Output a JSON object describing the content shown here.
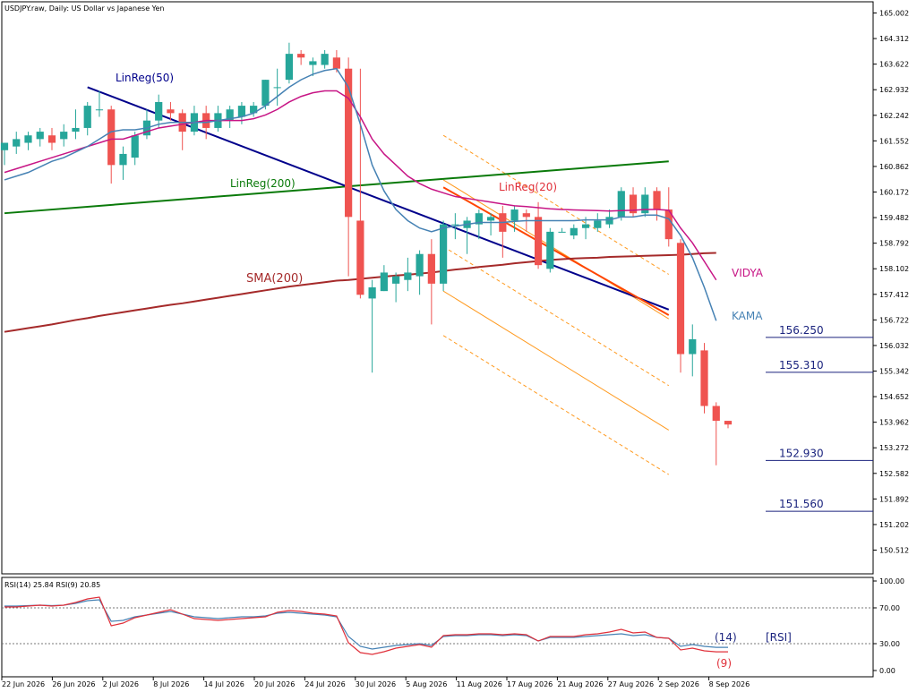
{
  "header": {
    "title": "USDJPY.raw, Daily:  US Dollar vs Japanese Yen"
  },
  "colors": {
    "bull": "#26a69a",
    "bear": "#ef5350",
    "sma200": "#a52a2a",
    "linreg200": "#0a7a0a",
    "linreg50": "#00008b",
    "linreg20": "#ff4500",
    "channel": "#ff9a1f",
    "vidya": "#c71585",
    "kama": "#4682b4",
    "levels": "#1a237e",
    "rsi14": "#4682b4",
    "rsi9": "#e0303a"
  },
  "chart_data": [
    {
      "type": "candlestick",
      "title": "USDJPY.raw, Daily:  US Dollar vs Japanese Yen",
      "ylim": [
        150.0,
        165.3
      ],
      "y_ticks": [
        "165.002",
        "164.312",
        "163.622",
        "162.932",
        "162.242",
        "161.552",
        "160.862",
        "160.172",
        "159.482",
        "158.792",
        "158.102",
        "157.412",
        "156.722",
        "156.032",
        "155.342",
        "154.652",
        "153.962",
        "153.272",
        "152.582",
        "151.892",
        "151.202",
        "150.512"
      ],
      "x_tick_labels": [
        "22 Jun 2026",
        "26 Jun 2026",
        "2 Jul 2026",
        "8 Jul 2026",
        "14 Jul 2026",
        "20 Jul 2026",
        "24 Jul 2026",
        "30 Jul 2026",
        "5 Aug 2026",
        "11 Aug 2026",
        "17 Aug 2026",
        "21 Aug 2026",
        "27 Aug 2026",
        "2 Sep 2026",
        "8 Sep 2026"
      ],
      "candles": [
        [
          161.3,
          161.5,
          160.9,
          161.5
        ],
        [
          161.4,
          161.8,
          161.2,
          161.6
        ],
        [
          161.5,
          161.8,
          161.3,
          161.7
        ],
        [
          161.6,
          161.9,
          161.4,
          161.8
        ],
        [
          161.7,
          161.9,
          161.3,
          161.5
        ],
        [
          161.6,
          162.0,
          161.4,
          161.8
        ],
        [
          161.8,
          162.4,
          161.6,
          161.9
        ],
        [
          161.9,
          162.6,
          161.7,
          162.5
        ],
        [
          162.4,
          162.9,
          162.2,
          162.4
        ],
        [
          162.4,
          162.5,
          160.4,
          160.9
        ],
        [
          160.9,
          161.4,
          160.5,
          161.2
        ],
        [
          161.1,
          161.8,
          160.9,
          161.7
        ],
        [
          161.7,
          162.4,
          161.6,
          162.1
        ],
        [
          162.1,
          162.8,
          161.9,
          162.6
        ],
        [
          162.4,
          162.6,
          162.1,
          162.3
        ],
        [
          162.3,
          162.4,
          161.3,
          161.8
        ],
        [
          161.8,
          162.5,
          161.7,
          162.3
        ],
        [
          162.3,
          162.5,
          161.6,
          161.9
        ],
        [
          161.9,
          162.5,
          161.8,
          162.3
        ],
        [
          162.1,
          162.5,
          161.9,
          162.4
        ],
        [
          162.2,
          162.6,
          162.0,
          162.5
        ],
        [
          162.3,
          162.6,
          162.2,
          162.5
        ],
        [
          162.5,
          163.2,
          162.4,
          163.2
        ],
        [
          163.0,
          163.5,
          162.5,
          163.0
        ],
        [
          163.2,
          164.2,
          163.1,
          163.9
        ],
        [
          163.9,
          164.0,
          163.6,
          163.8
        ],
        [
          163.6,
          163.8,
          163.3,
          163.7
        ],
        [
          163.6,
          164.0,
          163.5,
          163.9
        ],
        [
          163.8,
          164.0,
          163.4,
          163.5
        ],
        [
          163.5,
          163.8,
          157.9,
          159.5
        ],
        [
          159.4,
          163.5,
          157.3,
          157.4
        ],
        [
          157.3,
          157.8,
          155.3,
          157.6
        ],
        [
          157.5,
          158.2,
          157.5,
          158.0
        ],
        [
          157.7,
          158.0,
          157.2,
          157.9
        ],
        [
          157.8,
          158.4,
          157.5,
          158.0
        ],
        [
          157.9,
          158.6,
          157.4,
          158.5
        ],
        [
          158.5,
          158.9,
          156.6,
          157.7
        ],
        [
          157.7,
          159.4,
          157.5,
          159.3
        ],
        [
          159.3,
          159.6,
          158.9,
          159.3
        ],
        [
          159.2,
          159.5,
          158.5,
          159.4
        ],
        [
          159.3,
          159.7,
          158.9,
          159.6
        ],
        [
          159.4,
          159.6,
          159.0,
          159.5
        ],
        [
          159.6,
          159.8,
          158.4,
          159.1
        ],
        [
          159.4,
          159.8,
          159.1,
          159.7
        ],
        [
          159.6,
          159.7,
          159.1,
          159.5
        ],
        [
          159.5,
          159.9,
          158.1,
          158.2
        ],
        [
          158.1,
          159.2,
          158.0,
          159.1
        ],
        [
          159.1,
          159.2,
          159.1,
          159.1
        ],
        [
          159.0,
          159.3,
          158.9,
          159.2
        ],
        [
          159.2,
          159.5,
          158.9,
          159.3
        ],
        [
          159.2,
          159.6,
          159.1,
          159.4
        ],
        [
          159.3,
          159.7,
          159.2,
          159.5
        ],
        [
          159.5,
          160.3,
          159.4,
          160.2
        ],
        [
          160.1,
          160.3,
          159.5,
          159.6
        ],
        [
          159.6,
          160.3,
          159.5,
          160.1
        ],
        [
          160.2,
          160.3,
          159.4,
          159.7
        ],
        [
          159.7,
          160.3,
          158.7,
          158.9
        ],
        [
          158.8,
          158.9,
          155.3,
          155.8
        ],
        [
          155.8,
          156.6,
          155.2,
          156.2
        ],
        [
          155.9,
          156.1,
          154.2,
          154.4
        ],
        [
          154.4,
          154.5,
          152.8,
          154.0
        ],
        [
          154.0,
          154.0,
          153.8,
          153.9
        ]
      ],
      "indicators": [
        {
          "name": "SMA(200)",
          "values": [
            156.4,
            156.45,
            156.5,
            156.55,
            156.6,
            156.66,
            156.72,
            156.77,
            156.83,
            156.88,
            156.93,
            156.98,
            157.03,
            157.08,
            157.13,
            157.17,
            157.22,
            157.27,
            157.32,
            157.37,
            157.42,
            157.47,
            157.52,
            157.57,
            157.62,
            157.66,
            157.7,
            157.74,
            157.78,
            157.8,
            157.83,
            157.86,
            157.89,
            157.92,
            157.94,
            157.97,
            158.0,
            158.04,
            158.08,
            158.11,
            158.15,
            158.18,
            158.21,
            158.25,
            158.28,
            158.31,
            158.34,
            158.36,
            158.38,
            158.39,
            158.4,
            158.42,
            158.43,
            158.44,
            158.45,
            158.46,
            158.47,
            158.48,
            158.5,
            158.52,
            158.53
          ]
        },
        {
          "name": "VIDYA",
          "values": [
            160.7,
            160.8,
            160.9,
            161.0,
            161.1,
            161.2,
            161.3,
            161.4,
            161.5,
            161.6,
            161.6,
            161.7,
            161.8,
            161.9,
            161.95,
            162.0,
            162.05,
            162.1,
            162.1,
            162.1,
            162.1,
            162.15,
            162.25,
            162.4,
            162.6,
            162.75,
            162.85,
            162.9,
            162.9,
            162.7,
            162.2,
            161.6,
            161.2,
            160.9,
            160.6,
            160.4,
            160.25,
            160.15,
            160.05,
            160.0,
            159.95,
            159.9,
            159.85,
            159.8,
            159.78,
            159.75,
            159.72,
            159.7,
            159.69,
            159.68,
            159.67,
            159.66,
            159.67,
            159.68,
            159.7,
            159.7,
            159.68,
            159.2,
            158.8,
            158.3,
            157.8
          ]
        },
        {
          "name": "KAMA",
          "values": [
            160.5,
            160.6,
            160.7,
            160.85,
            161.0,
            161.1,
            161.25,
            161.4,
            161.6,
            161.8,
            161.85,
            161.85,
            161.9,
            162.0,
            162.05,
            162.05,
            162.05,
            162.05,
            162.1,
            162.15,
            162.2,
            162.3,
            162.5,
            162.75,
            163.0,
            163.2,
            163.35,
            163.45,
            163.5,
            163.0,
            162.0,
            160.9,
            160.2,
            159.7,
            159.4,
            159.2,
            159.1,
            159.2,
            159.25,
            159.3,
            159.35,
            159.35,
            159.35,
            159.38,
            159.4,
            159.4,
            159.4,
            159.4,
            159.4,
            159.42,
            159.42,
            159.42,
            159.5,
            159.5,
            159.55,
            159.55,
            159.45,
            159.0,
            158.4,
            157.6,
            156.7
          ]
        }
      ],
      "trend_lines": [
        {
          "name": "LinReg(200)",
          "from": [
            0,
            159.6
          ],
          "to": [
            56,
            161.0
          ]
        },
        {
          "name": "LinReg(50)",
          "from": [
            7,
            163.0
          ],
          "to": [
            56,
            157.0
          ]
        },
        {
          "name": "LinReg(20)",
          "from": [
            37,
            160.3
          ],
          "to": [
            56,
            156.85
          ]
        }
      ],
      "regression_channel": {
        "from": [
          37,
          157.5
        ],
        "to": [
          56,
          153.75
        ],
        "offsets": [
          -1.2,
          1.2,
          3.0,
          4.2
        ]
      },
      "levels": [
        {
          "name": "152.930",
          "value": 152.93
        },
        {
          "name": "151.560",
          "value": 151.56
        },
        {
          "name": "155.310",
          "value": 155.31
        },
        {
          "name": "156.250",
          "value": 156.25
        }
      ],
      "labels": [
        "LinReg(50)",
        "LinReg(200)",
        "LinReg(20)",
        "SMA(200)",
        "VIDYA",
        "KAMA"
      ]
    },
    {
      "type": "line",
      "title": "RSI(14) 25.84 RSI(9) 20.85",
      "ylim": [
        0,
        100
      ],
      "y_ticks": [
        "100.00",
        "70.00",
        "30.00",
        "0.00"
      ],
      "reference_lines": [
        70,
        30
      ],
      "annotations": [
        "(14)",
        "[RSI]",
        "(9)"
      ],
      "series": [
        {
          "name": "RSI(14)",
          "values": [
            72,
            72,
            72.5,
            73,
            72.5,
            73,
            75,
            78,
            79,
            55,
            56,
            60,
            62,
            64,
            66,
            63,
            60,
            59,
            58,
            59,
            60,
            60,
            61,
            64,
            65,
            64,
            63,
            62,
            60,
            38,
            27,
            24,
            26,
            28,
            29,
            30,
            28,
            38,
            39,
            39,
            40,
            40,
            39,
            40,
            39,
            33,
            37,
            37,
            37,
            38,
            39,
            40,
            41,
            39,
            40,
            37,
            36,
            27,
            29,
            27,
            25.84,
            25.84
          ]
        },
        {
          "name": "RSI(9)",
          "values": [
            71,
            71,
            72,
            73,
            72,
            73,
            76,
            80,
            82,
            50,
            53,
            59,
            62,
            65,
            68,
            63,
            58,
            57,
            56,
            57,
            58,
            59,
            60,
            65,
            67,
            66,
            64,
            63,
            61,
            31,
            20,
            18,
            21,
            25,
            27,
            29,
            26,
            39,
            40,
            40,
            41,
            41,
            40,
            41,
            40,
            33,
            38,
            38,
            38,
            40,
            41,
            43,
            46,
            42,
            43,
            37,
            36,
            23,
            25,
            22,
            20.85,
            20.85
          ]
        }
      ]
    }
  ]
}
